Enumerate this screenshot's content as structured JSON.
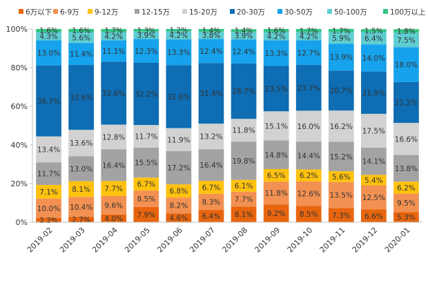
{
  "chart_data": {
    "type": "bar",
    "stacked": true,
    "title": "",
    "xlabel": "",
    "ylabel": "",
    "ylim": [
      0,
      100
    ],
    "y_ticks": [
      "0%",
      "20%",
      "40%",
      "60%",
      "80%",
      "100%"
    ],
    "grid": false,
    "legend_position": "top",
    "categories": [
      "2019-02",
      "2019-03",
      "2019-04",
      "2019-05",
      "2019-06",
      "2019-07",
      "2019-08",
      "2019-09",
      "2019-10",
      "2019-11",
      "2019-12",
      "2020-01"
    ],
    "series": [
      {
        "name": "6万以下",
        "color": "#e8650e",
        "label_color": "#333333",
        "values": [
          2.2,
          2.7,
          4.0,
          7.9,
          4.6,
          6.4,
          8.1,
          9.2,
          8.5,
          7.3,
          6.6,
          5.3
        ],
        "labels": [
          "2.2%",
          "2.7%",
          "4.0%",
          "7.9%",
          "4.6%",
          "6.4%",
          "8.1%",
          "9.2%",
          "8.5%",
          "7.3%",
          "6.6%",
          "5.3%"
        ]
      },
      {
        "name": "6-9万",
        "color": "#f39152",
        "label_color": "#333333",
        "values": [
          10.0,
          10.4,
          9.6,
          8.5,
          8.2,
          8.3,
          7.7,
          11.8,
          12.6,
          13.5,
          12.5,
          9.5
        ],
        "labels": [
          "10.0%",
          "10.4%",
          "9.6%",
          "8.5%",
          "8.2%",
          "8.3%",
          "7.7%",
          "11.8%",
          "12.6%",
          "13.5%",
          "12.5%",
          "9.5%"
        ]
      },
      {
        "name": "9-12万",
        "color": "#ffc20e",
        "label_color": "#333333",
        "values": [
          7.1,
          8.1,
          7.7,
          6.7,
          6.8,
          6.7,
          6.1,
          6.5,
          6.2,
          5.6,
          5.4,
          6.2
        ],
        "labels": [
          "7.1%",
          "8.1%",
          "7.7%",
          "6.7%",
          "6.8%",
          "6.7%",
          "6.1%",
          "6.5%",
          "6.2%",
          "5.6%",
          "5.4%",
          "6.2%"
        ]
      },
      {
        "name": "12-15万",
        "color": "#a3a3a3",
        "label_color": "#333333",
        "values": [
          11.7,
          13.0,
          16.4,
          15.5,
          17.2,
          16.4,
          19.8,
          14.8,
          14.4,
          15.2,
          14.1,
          13.8
        ],
        "labels": [
          "11.7%",
          "13.0%",
          "16.4%",
          "15.5%",
          "17.2%",
          "16.4%",
          "19.8%",
          "14.8%",
          "14.4%",
          "15.2%",
          "14.1%",
          "13.8%"
        ]
      },
      {
        "name": "15-20万",
        "color": "#d2d2d2",
        "label_color": "#333333",
        "values": [
          13.4,
          13.6,
          12.8,
          11.7,
          11.9,
          13.2,
          11.8,
          15.1,
          16.0,
          16.2,
          17.5,
          16.6
        ],
        "labels": [
          "13.4%",
          "13.6%",
          "12.8%",
          "11.7%",
          "11.9%",
          "13.2%",
          "11.8%",
          "15.1%",
          "16.0%",
          "16.2%",
          "17.5%",
          "16.6%"
        ]
      },
      {
        "name": "20-30万",
        "color": "#0e6db3",
        "label_color": "#333333",
        "values": [
          36.7,
          33.6,
          32.6,
          32.2,
          32.6,
          31.4,
          28.7,
          23.5,
          23.7,
          20.7,
          21.9,
          21.2
        ],
        "labels": [
          "36.7%",
          "33.6%",
          "32.6%",
          "32.2%",
          "32.6%",
          "31.4%",
          "28.7%",
          "23.5%",
          "23.7%",
          "20.7%",
          "21.9%",
          "21.2%"
        ]
      },
      {
        "name": "30-50万",
        "color": "#16a2ec",
        "label_color": "#333333",
        "values": [
          13.0,
          11.4,
          11.1,
          12.3,
          13.3,
          12.4,
          12.4,
          13.3,
          12.7,
          13.9,
          14.0,
          18.0
        ],
        "labels": [
          "13.0%",
          "11.4%",
          "11.1%",
          "12.3%",
          "13.3%",
          "12.4%",
          "12.4%",
          "13.3%",
          "12.7%",
          "13.9%",
          "14.0%",
          "18.0%"
        ]
      },
      {
        "name": "50-100万",
        "color": "#5fcdd2",
        "label_color": "#333333",
        "values": [
          4.3,
          5.6,
          4.2,
          3.9,
          4.2,
          3.8,
          3.9,
          4.2,
          4.2,
          5.9,
          6.4,
          7.5
        ],
        "labels": [
          "4.3%",
          "5.6%",
          "4.2%",
          "3.9%",
          "4.2%",
          "3.8%",
          "3.9%",
          "4.2%",
          "4.2%",
          "5.9%",
          "6.4%",
          "7.5%"
        ]
      },
      {
        "name": "100万以上",
        "color": "#33c481",
        "label_color": "#333333",
        "values": [
          1.6,
          1.6,
          1.7,
          1.3,
          1.2,
          1.4,
          1.4,
          1.6,
          1.7,
          1.7,
          1.5,
          1.8
        ],
        "labels": [
          "1.6%",
          "1.6%",
          "1.7%",
          "1.3%",
          "1.2%",
          "1.4%",
          "1.4%",
          "1.6%",
          "1.7%",
          "1.7%",
          "1.5%",
          "1.8%"
        ]
      }
    ]
  }
}
